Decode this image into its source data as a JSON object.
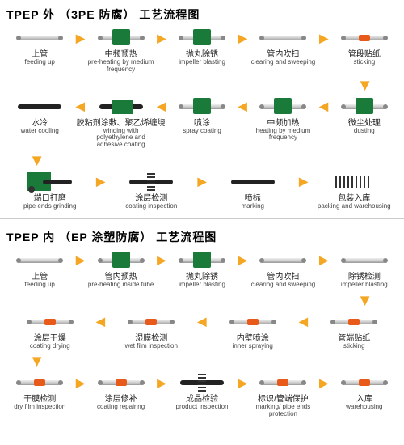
{
  "colors": {
    "arrow": "#f5a623",
    "green": "#1a7a3a",
    "orange": "#e85a1a",
    "text": "#222222",
    "bg": "#ffffff",
    "pipe_light": "#f0f0f0",
    "pipe_dark": "#999999"
  },
  "section1": {
    "title": "TPEP 外 （3PE 防腐） 工艺流程图",
    "rows": [
      {
        "dir": "right",
        "steps": [
          {
            "icon": "pipe",
            "cn": "上管",
            "en": "feeding up"
          },
          {
            "icon": "box-g",
            "cn": "中频预热",
            "en": "pre-heating by medium frequency"
          },
          {
            "icon": "box-g",
            "cn": "抛丸除锈",
            "en": "impeller blasting"
          },
          {
            "icon": "pipe",
            "cn": "管内吹扫",
            "en": "clearing and sweeping"
          },
          {
            "icon": "dot-o",
            "cn": "管段贴纸",
            "en": "sticking"
          }
        ]
      },
      {
        "dir": "left",
        "steps": [
          {
            "icon": "black",
            "cn": "水冷",
            "en": "water cooling"
          },
          {
            "icon": "box-g2",
            "cn": "胶粘剂涂敷、聚乙烯缠绕",
            "en": "winding with polyethylene and adhesive coating"
          },
          {
            "icon": "box-g",
            "cn": "喷涂",
            "en": "spray coating"
          },
          {
            "icon": "box-g",
            "cn": "中频加热",
            "en": "heating by medium frequency"
          },
          {
            "icon": "box-g",
            "cn": "微尘处理",
            "en": "dusting"
          }
        ]
      },
      {
        "dir": "right",
        "steps": [
          {
            "icon": "machine",
            "cn": "端口打磨",
            "en": "pipe ends grinding"
          },
          {
            "icon": "spring",
            "cn": "涂层检测",
            "en": "coating inspection"
          },
          {
            "icon": "black",
            "cn": "喷标",
            "en": "marking"
          },
          {
            "icon": "lines",
            "cn": "包装入库",
            "en": "packing and warehousing"
          }
        ]
      }
    ]
  },
  "section2": {
    "title": "TPEP 内 （EP 涂塑防腐） 工艺流程图",
    "rows": [
      {
        "dir": "right",
        "steps": [
          {
            "icon": "pipe",
            "cn": "上管",
            "en": "feeding up"
          },
          {
            "icon": "box-g",
            "cn": "管内预热",
            "en": "pre-heating inside tube"
          },
          {
            "icon": "box-g",
            "cn": "抛丸除锈",
            "en": "impeller blasting"
          },
          {
            "icon": "pipe",
            "cn": "管内吹扫",
            "en": "clearing and sweeping"
          },
          {
            "icon": "pipe",
            "cn": "除锈检测",
            "en": "impeller blasting"
          }
        ]
      },
      {
        "dir": "left",
        "steps": [
          {
            "icon": "dot-o",
            "cn": "涂层干燥",
            "en": "coating drying"
          },
          {
            "icon": "dot-o",
            "cn": "湿膜检测",
            "en": "wet film inspection"
          },
          {
            "icon": "dot-o",
            "cn": "内壁喷涂",
            "en": "inner spraying"
          },
          {
            "icon": "dot-o",
            "cn": "管端贴纸",
            "en": "sticking"
          }
        ]
      },
      {
        "dir": "right",
        "steps": [
          {
            "icon": "dot-o",
            "cn": "干膜检测",
            "en": "dry film inspection"
          },
          {
            "icon": "dot-o",
            "cn": "涂层修补",
            "en": "coating repairing"
          },
          {
            "icon": "spring",
            "cn": "成品检验",
            "en": "product inspection"
          },
          {
            "icon": "dot-o",
            "cn": "标识/管端保护",
            "en": "marking/ pipe ends protection"
          },
          {
            "icon": "dot-o",
            "cn": "入库",
            "en": "warehousing"
          }
        ]
      }
    ]
  }
}
